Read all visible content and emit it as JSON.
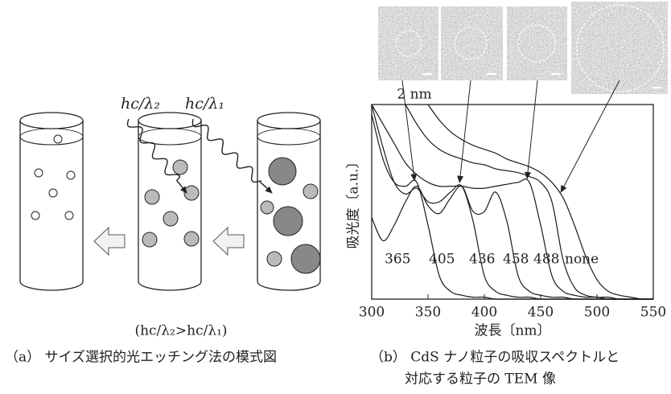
{
  "diagram": {
    "photon_short": "hc/λ₂",
    "photon_long": "hc/λ₁",
    "condition": "(hc/λ₂>hc/λ₁)",
    "caption": "（a） サイズ選択的光エッチング法の模式図"
  },
  "chart_data": {
    "type": "line",
    "x_label": "波長〔nm〕",
    "y_label": "吸光度〔a.u.〕",
    "scale_bar": "2 nm",
    "caption_lines": [
      "（b） CdS ナノ粒子の吸収スペクトルと",
      "対応する粒子の TEM 像"
    ],
    "line_color": "#1a1a1a",
    "xlim": [
      300,
      550
    ],
    "xticks": [
      300,
      350,
      400,
      450,
      500,
      550
    ],
    "ylim": [
      0,
      1
    ],
    "x": [
      300,
      310,
      320,
      330,
      340,
      350,
      360,
      370,
      380,
      390,
      400,
      410,
      420,
      430,
      440,
      450,
      460,
      470,
      480,
      490,
      500,
      510,
      520,
      530,
      540,
      550
    ],
    "series": [
      {
        "name": "365",
        "values": [
          0.95,
          0.72,
          0.6,
          0.58,
          0.6,
          0.38,
          0.12,
          0.04,
          0.02,
          0.01,
          0.01,
          0,
          0,
          0,
          0,
          0,
          0,
          0,
          0,
          0,
          0,
          0,
          0,
          0,
          0,
          0
        ]
      },
      {
        "name": "405",
        "values": [
          1.0,
          0.78,
          0.6,
          0.54,
          0.57,
          0.5,
          0.5,
          0.55,
          0.58,
          0.4,
          0.12,
          0.04,
          0.02,
          0.01,
          0.01,
          0,
          0,
          0,
          0,
          0,
          0,
          0,
          0,
          0,
          0,
          0
        ]
      },
      {
        "name": "436",
        "values": [
          0.42,
          0.3,
          0.38,
          0.5,
          0.58,
          0.48,
          0.44,
          0.52,
          0.58,
          0.45,
          0.45,
          0.55,
          0.4,
          0.12,
          0.04,
          0.02,
          0.01,
          0.01,
          0,
          0,
          0,
          0,
          0,
          0,
          0,
          0
        ]
      },
      {
        "name": "458",
        "values": [
          1.0,
          0.9,
          0.8,
          0.7,
          0.64,
          0.6,
          0.58,
          0.58,
          0.58,
          0.57,
          0.57,
          0.58,
          0.59,
          0.6,
          0.6,
          0.38,
          0.12,
          0.04,
          0.02,
          0.01,
          0.01,
          0,
          0,
          0,
          0,
          0
        ]
      },
      {
        "name": "488",
        "values": [
          null,
          null,
          null,
          1.0,
          0.9,
          0.82,
          0.77,
          0.74,
          0.72,
          0.7,
          0.69,
          0.67,
          0.66,
          0.65,
          0.63,
          0.6,
          0.5,
          0.2,
          0.06,
          0.02,
          0.01,
          0.01,
          0,
          0,
          0,
          0
        ]
      },
      {
        "name": "none",
        "values": [
          null,
          null,
          null,
          null,
          null,
          1.0,
          0.92,
          0.86,
          0.82,
          0.79,
          0.77,
          0.75,
          0.72,
          0.7,
          0.68,
          0.65,
          0.6,
          0.52,
          0.38,
          0.22,
          0.1,
          0.04,
          0.02,
          0.01,
          0,
          0
        ]
      }
    ]
  }
}
